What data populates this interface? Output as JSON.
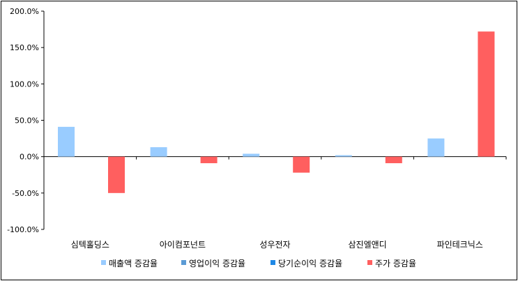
{
  "chart_data": {
    "type": "bar",
    "categories": [
      "심텍홀딩스",
      "아이컴포넌트",
      "성우전자",
      "삼진엘앤디",
      "파인테크닉스"
    ],
    "series": [
      {
        "name": "매출액 증감율",
        "color": "#99ccff",
        "values": [
          41,
          13,
          4,
          2,
          25
        ]
      },
      {
        "name": "영업이익 증감율",
        "color": "#5b9bd5",
        "values": [
          null,
          null,
          null,
          null,
          null
        ]
      },
      {
        "name": "당기순이익 증감율",
        "color": "#1e88e5",
        "values": [
          null,
          null,
          null,
          null,
          null
        ]
      },
      {
        "name": "주가 증감율",
        "color": "#ff5f5f",
        "values": [
          -50,
          -9,
          -22,
          -9,
          172
        ]
      }
    ],
    "yticks": [
      "200.0%",
      "150.0%",
      "100.0%",
      "50.0%",
      "0.0%",
      "-50.0%",
      "-100.0%"
    ],
    "ylim": [
      -100,
      200
    ],
    "grid": false,
    "legend": "bottom"
  }
}
